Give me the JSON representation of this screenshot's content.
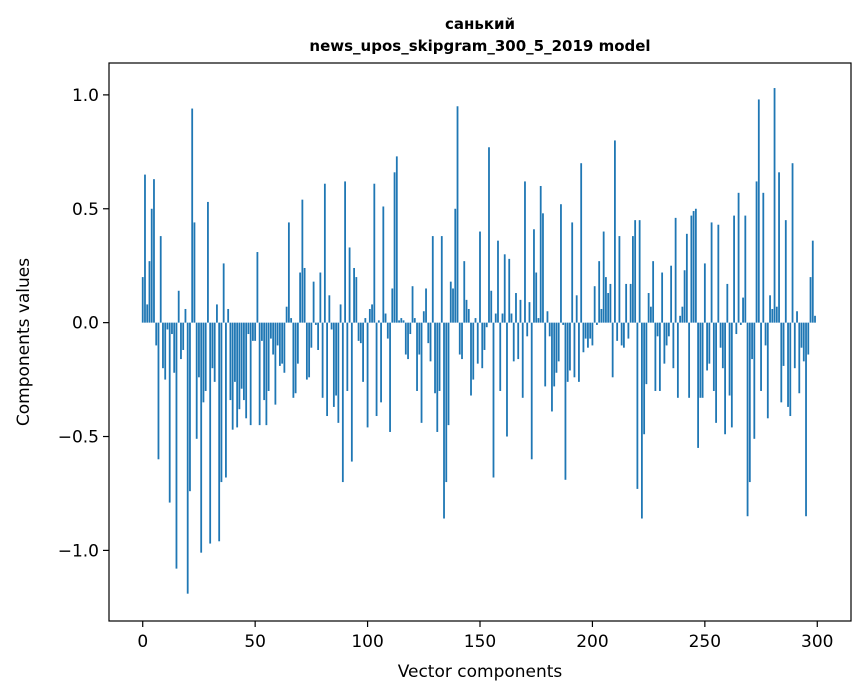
{
  "chart_data": {
    "type": "bar",
    "title": "санький",
    "subtitle": "news_upos_skipgram_300_5_2019 model",
    "xlabel": "Vector components",
    "ylabel": "Components values",
    "xlim": [
      -15,
      315
    ],
    "ylim": [
      -1.31,
      1.14
    ],
    "xticks": [
      0,
      50,
      100,
      150,
      200,
      250,
      300
    ],
    "xtick_labels": [
      "0",
      "50",
      "100",
      "150",
      "200",
      "250",
      "300"
    ],
    "yticks": [
      -1.0,
      -0.5,
      0.0,
      0.5,
      1.0
    ],
    "ytick_labels": [
      "−1.0",
      "−0.5",
      "0.0",
      "0.5",
      "1.0"
    ],
    "grid": false,
    "bar_color": "#1f77b4",
    "x": [
      0,
      1,
      2,
      3,
      4,
      5,
      6,
      7,
      8,
      9,
      10,
      11,
      12,
      13,
      14,
      15,
      16,
      17,
      18,
      19,
      20,
      21,
      22,
      23,
      24,
      25,
      26,
      27,
      28,
      29,
      30,
      31,
      32,
      33,
      34,
      35,
      36,
      37,
      38,
      39,
      40,
      41,
      42,
      43,
      44,
      45,
      46,
      47,
      48,
      49,
      50,
      51,
      52,
      53,
      54,
      55,
      56,
      57,
      58,
      59,
      60,
      61,
      62,
      63,
      64,
      65,
      66,
      67,
      68,
      69,
      70,
      71,
      72,
      73,
      74,
      75,
      76,
      77,
      78,
      79,
      80,
      81,
      82,
      83,
      84,
      85,
      86,
      87,
      88,
      89,
      90,
      91,
      92,
      93,
      94,
      95,
      96,
      97,
      98,
      99,
      100,
      101,
      102,
      103,
      104,
      105,
      106,
      107,
      108,
      109,
      110,
      111,
      112,
      113,
      114,
      115,
      116,
      117,
      118,
      119,
      120,
      121,
      122,
      123,
      124,
      125,
      126,
      127,
      128,
      129,
      130,
      131,
      132,
      133,
      134,
      135,
      136,
      137,
      138,
      139,
      140,
      141,
      142,
      143,
      144,
      145,
      146,
      147,
      148,
      149,
      150,
      151,
      152,
      153,
      154,
      155,
      156,
      157,
      158,
      159,
      160,
      161,
      162,
      163,
      164,
      165,
      166,
      167,
      168,
      169,
      170,
      171,
      172,
      173,
      174,
      175,
      176,
      177,
      178,
      179,
      180,
      181,
      182,
      183,
      184,
      185,
      186,
      187,
      188,
      189,
      190,
      191,
      192,
      193,
      194,
      195,
      196,
      197,
      198,
      199,
      200,
      201,
      202,
      203,
      204,
      205,
      206,
      207,
      208,
      209,
      210,
      211,
      212,
      213,
      214,
      215,
      216,
      217,
      218,
      219,
      220,
      221,
      222,
      223,
      224,
      225,
      226,
      227,
      228,
      229,
      230,
      231,
      232,
      233,
      234,
      235,
      236,
      237,
      238,
      239,
      240,
      241,
      242,
      243,
      244,
      245,
      246,
      247,
      248,
      249,
      250,
      251,
      252,
      253,
      254,
      255,
      256,
      257,
      258,
      259,
      260,
      261,
      262,
      263,
      264,
      265,
      266,
      267,
      268,
      269,
      270,
      271,
      272,
      273,
      274,
      275,
      276,
      277,
      278,
      279,
      280,
      281,
      282,
      283,
      284,
      285,
      286,
      287,
      288,
      289,
      290,
      291,
      292,
      293,
      294,
      295,
      296,
      297,
      298,
      299
    ],
    "values": [
      0.2,
      0.65,
      0.08,
      0.27,
      0.5,
      0.63,
      -0.1,
      -0.6,
      0.38,
      -0.2,
      -0.25,
      -0.03,
      -0.79,
      -0.05,
      -0.22,
      -1.08,
      0.14,
      -0.16,
      -0.12,
      0.06,
      -1.19,
      -0.74,
      0.94,
      0.44,
      -0.51,
      -0.24,
      -1.01,
      -0.35,
      -0.3,
      0.53,
      -0.97,
      -0.2,
      -0.26,
      0.08,
      -0.96,
      -0.7,
      0.26,
      -0.68,
      0.06,
      -0.34,
      -0.47,
      -0.26,
      -0.46,
      -0.38,
      -0.29,
      -0.34,
      -0.42,
      -0.05,
      -0.45,
      -0.08,
      -0.08,
      0.31,
      -0.45,
      -0.08,
      -0.34,
      -0.45,
      -0.3,
      -0.07,
      -0.14,
      -0.36,
      -0.1,
      -0.19,
      -0.18,
      -0.22,
      0.07,
      0.44,
      0.02,
      -0.33,
      -0.31,
      -0.18,
      0.22,
      0.54,
      0.24,
      -0.25,
      -0.24,
      -0.11,
      0.18,
      -0.01,
      -0.12,
      0.22,
      -0.33,
      0.61,
      -0.41,
      0.12,
      -0.03,
      -0.37,
      -0.32,
      -0.44,
      0.08,
      -0.7,
      0.62,
      -0.3,
      0.33,
      -0.61,
      0.24,
      0.2,
      -0.08,
      -0.09,
      -0.26,
      0.02,
      -0.46,
      0.06,
      0.08,
      0.61,
      -0.41,
      0.01,
      -0.35,
      0.51,
      0.04,
      -0.07,
      -0.48,
      0.15,
      0.66,
      0.73,
      0.01,
      0.02,
      0.01,
      -0.14,
      -0.16,
      -0.05,
      0.16,
      0.02,
      -0.3,
      -0.14,
      -0.44,
      0.05,
      0.15,
      -0.09,
      -0.17,
      0.38,
      -0.31,
      -0.48,
      -0.3,
      0.38,
      -0.86,
      -0.7,
      -0.45,
      0.18,
      0.15,
      0.5,
      0.95,
      -0.14,
      -0.16,
      0.27,
      0.1,
      0.06,
      -0.32,
      -0.25,
      0.02,
      -0.18,
      0.4,
      -0.2,
      -0.12,
      -0.02,
      0.77,
      0.14,
      -0.68,
      0.04,
      0.36,
      -0.3,
      0.04,
      0.3,
      -0.5,
      0.28,
      0.04,
      -0.17,
      0.13,
      -0.16,
      0.1,
      -0.33,
      0.62,
      -0.06,
      0.09,
      -0.6,
      0.41,
      0.22,
      0.02,
      0.6,
      0.48,
      -0.28,
      0.05,
      -0.06,
      -0.39,
      -0.28,
      -0.22,
      -0.17,
      0.52,
      -0.01,
      -0.69,
      -0.26,
      -0.21,
      0.44,
      -0.24,
      0.12,
      -0.26,
      0.7,
      -0.13,
      -0.07,
      -0.11,
      -0.07,
      -0.1,
      0.16,
      -0.01,
      0.27,
      0.06,
      0.4,
      0.2,
      0.13,
      0.17,
      -0.24,
      0.8,
      -0.08,
      0.38,
      -0.1,
      -0.11,
      0.17,
      -0.07,
      0.17,
      0.38,
      0.45,
      -0.73,
      0.45,
      -0.86,
      -0.49,
      -0.27,
      0.13,
      0.07,
      0.27,
      -0.3,
      -0.06,
      -0.3,
      0.22,
      -0.18,
      -0.1,
      -0.06,
      0.25,
      -0.2,
      0.46,
      -0.33,
      0.03,
      0.07,
      0.23,
      0.39,
      -0.33,
      0.47,
      0.49,
      0.5,
      -0.55,
      -0.33,
      -0.33,
      0.26,
      -0.21,
      -0.18,
      0.44,
      -0.3,
      -0.44,
      0.43,
      -0.11,
      -0.2,
      -0.49,
      0.17,
      -0.32,
      -0.46,
      0.47,
      -0.05,
      0.57,
      -0.01,
      0.11,
      0.47,
      -0.85,
      -0.7,
      -0.16,
      -0.51,
      0.62,
      0.98,
      -0.3,
      0.57,
      -0.1,
      -0.42,
      0.12,
      0.06,
      1.03,
      0.07,
      0.66,
      -0.35,
      -0.19,
      0.45,
      -0.37,
      -0.41,
      0.7,
      -0.2,
      0.05,
      -0.31,
      -0.11,
      -0.17,
      -0.85,
      -0.14,
      0.2,
      0.36,
      0.03
    ]
  }
}
